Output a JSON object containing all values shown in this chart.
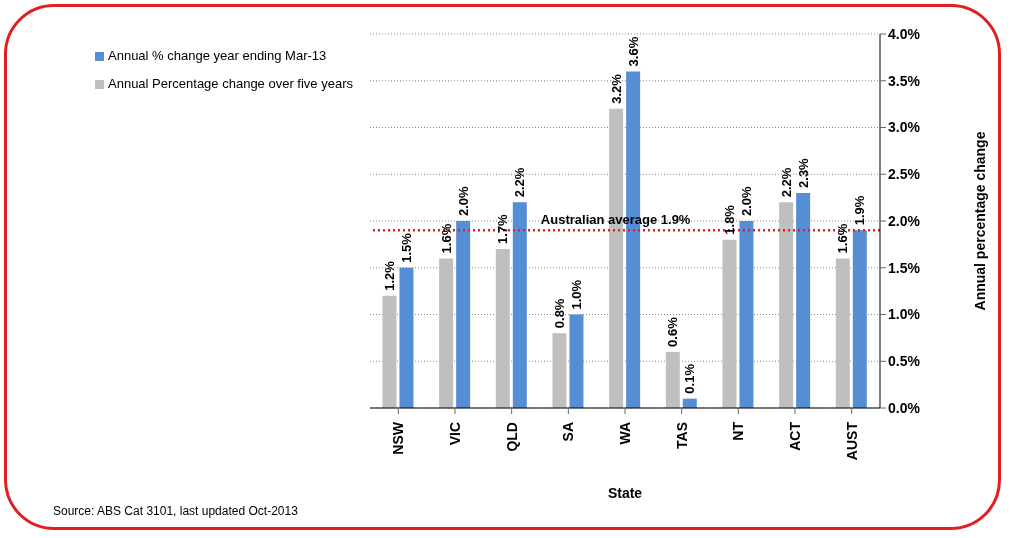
{
  "chart_data": {
    "type": "bar",
    "xlabel": "State",
    "ylabel": "Annual percentage change",
    "categories": [
      "NSW",
      "VIC",
      "QLD",
      "SA",
      "WA",
      "TAS",
      "NT",
      "ACT",
      "AUST"
    ],
    "series": [
      {
        "name": "Annual Percentage change over five years",
        "color": "#bfbfbf",
        "values": [
          1.2,
          1.6,
          1.7,
          0.8,
          3.2,
          0.6,
          1.8,
          2.2,
          1.6
        ],
        "value_labels": [
          "1.2%",
          "1.6%",
          "1.7%",
          "0.8%",
          "3.2%",
          "0.6%",
          "1.8%",
          "2.2%",
          "1.6%"
        ]
      },
      {
        "name": "Annual % change year ending Mar-13",
        "color": "#558ed5",
        "values": [
          1.5,
          2.0,
          2.2,
          1.0,
          3.6,
          0.1,
          2.0,
          2.3,
          1.9
        ],
        "value_labels": [
          "1.5%",
          "2.0%",
          "2.2%",
          "1.0%",
          "3.6%",
          "0.1%",
          "2.0%",
          "2.3%",
          "1.9%"
        ]
      }
    ],
    "ylim": [
      0,
      4
    ],
    "yticks": [
      {
        "value": 0,
        "label": "0.0%"
      },
      {
        "value": 0.5,
        "label": "0.5%"
      },
      {
        "value": 1,
        "label": "1.0%"
      },
      {
        "value": 1.5,
        "label": "1.5%"
      },
      {
        "value": 2,
        "label": "2.0%"
      },
      {
        "value": 2.5,
        "label": "2.5%"
      },
      {
        "value": 3,
        "label": "3.0%"
      },
      {
        "value": 3.5,
        "label": "3.5%"
      },
      {
        "value": 4,
        "label": "4.0%"
      }
    ],
    "ref_lines": [
      {
        "axis": "y",
        "value": 1.9,
        "label": "Australian average 1.9%",
        "color": "#e02020",
        "line_style": "dotted"
      }
    ],
    "grid": "y",
    "legend": "top left",
    "annotations": [
      "Source: ABS Cat 3101, last updated Oct-2013"
    ]
  }
}
